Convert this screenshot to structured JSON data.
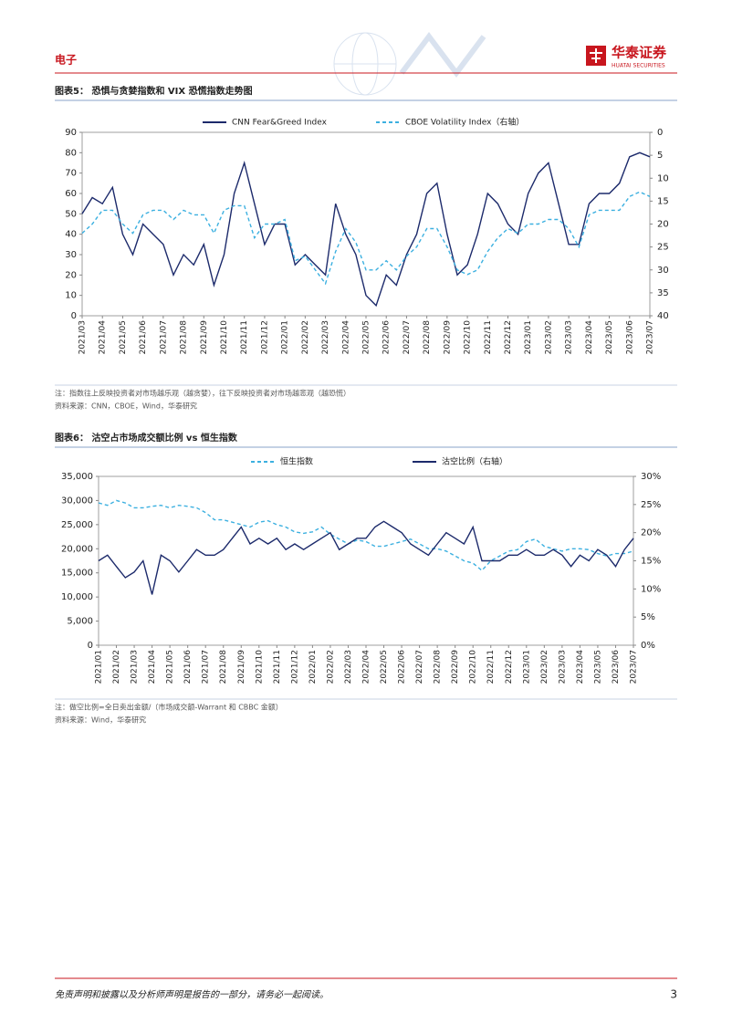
{
  "header": {
    "section": "电子",
    "brand": "华泰证券",
    "brand_en": "HUATAI SECURITIES"
  },
  "figures": [
    {
      "caption": "图表5：  恐惧与贪婪指数和 VIX 恐慌指数走势图",
      "note": "注：指数往上反映投资者对市场越乐观（越贪婪），往下反映投资者对市场越悲观（越恐慌）",
      "source": "资料来源：CNN，CBOE，Wind，华泰研究"
    },
    {
      "caption": "图表6：  沽空占市场成交额比例 vs 恒生指数",
      "note": "注：做空比例=全日卖出金额/（市场成交额-Warrant 和 CBBC 金额）",
      "source": "资料来源：Wind，华泰研究"
    }
  ],
  "chart_data": [
    {
      "type": "line",
      "categories": [
        "2021/03",
        null,
        "2021/04",
        null,
        "2021/05",
        null,
        "2021/06",
        null,
        "2021/07",
        null,
        "2021/08",
        null,
        "2021/09",
        null,
        "2021/10",
        null,
        "2021/11",
        null,
        "2021/12",
        null,
        "2022/01",
        null,
        "2022/02",
        null,
        "2022/03",
        null,
        "2022/04",
        null,
        "2022/05",
        null,
        "2022/06",
        null,
        "2022/07",
        null,
        "2022/08",
        null,
        "2022/09",
        null,
        "2022/10",
        null,
        "2022/11",
        null,
        "2022/12",
        null,
        "2023/01",
        null,
        "2023/02",
        null,
        "2023/03",
        null,
        "2023/04",
        null,
        "2023/05",
        null,
        "2023/06",
        null,
        "2023/07"
      ],
      "series": [
        {
          "name": "CNN Fear&Greed Index",
          "color": "#1c2a6b",
          "style": "solid",
          "values": [
            50,
            58,
            55,
            63,
            40,
            30,
            45,
            40,
            35,
            20,
            30,
            25,
            35,
            15,
            30,
            60,
            75,
            55,
            35,
            45,
            45,
            25,
            30,
            25,
            20,
            55,
            40,
            30,
            10,
            5,
            20,
            15,
            30,
            40,
            60,
            65,
            40,
            20,
            25,
            40,
            60,
            55,
            45,
            40,
            60,
            70,
            75,
            55,
            35,
            35,
            55,
            60,
            60,
            65,
            78,
            80,
            78
          ]
        },
        {
          "name": "CBOE Volatility Index（右轴）",
          "color": "#3cb0e0",
          "style": "dashed",
          "axis": "y2",
          "values": [
            22,
            20,
            17,
            17,
            20,
            22,
            18,
            17,
            17,
            19,
            17,
            18,
            18,
            22,
            17,
            16,
            16,
            23,
            20,
            20,
            19,
            28,
            27,
            30,
            33,
            26,
            21,
            24,
            30,
            30,
            28,
            30,
            27,
            25,
            21,
            21,
            25,
            30,
            31,
            30,
            26,
            23,
            21,
            22,
            20,
            20,
            19,
            19,
            21,
            25,
            18,
            17,
            17,
            17,
            14,
            13,
            14
          ]
        }
      ],
      "ylim": [
        0,
        90
      ],
      "yticks": [
        0,
        10,
        20,
        30,
        40,
        50,
        60,
        70,
        80,
        90
      ],
      "y2lim": [
        40,
        0
      ],
      "y2ticks": [
        0,
        5,
        10,
        15,
        20,
        25,
        30,
        35,
        40
      ]
    },
    {
      "type": "line",
      "categories": [
        "2021/01",
        null,
        "2021/02",
        null,
        "2021/03",
        null,
        "2021/04",
        null,
        "2021/05",
        null,
        "2021/06",
        null,
        "2021/07",
        null,
        "2021/08",
        null,
        "2021/09",
        null,
        "2021/10",
        null,
        "2021/11",
        null,
        "2021/12",
        null,
        "2022/01",
        null,
        "2022/02",
        null,
        "2022/03",
        null,
        "2022/04",
        null,
        "2022/05",
        null,
        "2022/06",
        null,
        "2022/07",
        null,
        "2022/08",
        null,
        "2022/09",
        null,
        "2022/10",
        null,
        "2022/11",
        null,
        "2022/12",
        null,
        "2023/01",
        null,
        "2023/02",
        null,
        "2023/03",
        null,
        "2023/04",
        null,
        "2023/05",
        null,
        "2023/06",
        null,
        "2023/07"
      ],
      "series": [
        {
          "name": "恒生指数",
          "color": "#3cb0e0",
          "style": "dashed",
          "values": [
            29500,
            29000,
            30000,
            29500,
            28500,
            28500,
            28800,
            29000,
            28500,
            29000,
            28800,
            28500,
            27500,
            26000,
            26000,
            25500,
            25000,
            24500,
            25500,
            25800,
            25000,
            24500,
            23500,
            23200,
            23500,
            24500,
            23000,
            22000,
            21000,
            21800,
            21500,
            20500,
            20500,
            21000,
            21500,
            22000,
            21000,
            20000,
            20000,
            19500,
            18500,
            17500,
            17000,
            15500,
            17500,
            18500,
            19500,
            19800,
            21500,
            22000,
            20500,
            20000,
            19500,
            20000,
            20000,
            19800,
            19000,
            18500,
            19000,
            19000,
            19500
          ]
        },
        {
          "name": "沽空比例（右轴）",
          "color": "#1c2a6b",
          "style": "solid",
          "axis": "y2",
          "values": [
            15,
            16,
            14,
            12,
            13,
            15,
            9,
            16,
            15,
            13,
            15,
            17,
            16,
            16,
            17,
            19,
            21,
            18,
            19,
            18,
            19,
            17,
            18,
            17,
            18,
            19,
            20,
            17,
            18,
            19,
            19,
            21,
            22,
            21,
            20,
            18,
            17,
            16,
            18,
            20,
            19,
            18,
            21,
            15,
            15,
            15,
            16,
            16,
            17,
            16,
            16,
            17,
            16,
            14,
            16,
            15,
            17,
            16,
            14,
            17,
            19
          ]
        }
      ],
      "ylim": [
        0,
        35000
      ],
      "yticks": [
        0,
        {
          "value": 5000,
          "label": "5,000"
        },
        {
          "value": 10000,
          "label": "10,000"
        },
        {
          "value": 15000,
          "label": "15,000"
        },
        {
          "value": 20000,
          "label": "20,000"
        },
        {
          "value": 25000,
          "label": "25,000"
        },
        {
          "value": 30000,
          "label": "30,000"
        },
        {
          "value": 35000,
          "label": "35,000"
        }
      ],
      "y2lim": [
        0,
        30
      ],
      "y2ticks": [
        {
          "value": 0,
          "label": "0%"
        },
        {
          "value": 5,
          "label": "5%"
        },
        {
          "value": 10,
          "label": "10%"
        },
        {
          "value": 15,
          "label": "15%"
        },
        {
          "value": 20,
          "label": "20%"
        },
        {
          "value": 25,
          "label": "25%"
        },
        {
          "value": 30,
          "label": "30%"
        }
      ]
    }
  ],
  "footer": {
    "disclaimer": "免责声明和披露以及分析师声明是报告的一部分，请务必一起阅读。",
    "page": "3"
  }
}
